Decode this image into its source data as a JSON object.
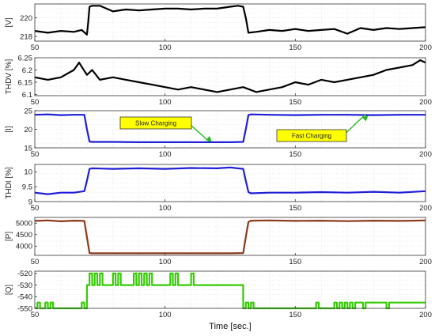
{
  "chart_data": [
    {
      "type": "line",
      "ylabel": "[V]",
      "xlim": [
        50,
        200
      ],
      "ylim": [
        217.5,
        221.5
      ],
      "yticks": [
        218,
        220
      ],
      "xticks": [
        50,
        100,
        150,
        200
      ],
      "grid": true,
      "series": [
        {
          "color": "#000000",
          "x": [
            50,
            55,
            60,
            65,
            68,
            70,
            70.5,
            71,
            72,
            75,
            80,
            85,
            90,
            95,
            100,
            105,
            110,
            115,
            120,
            125,
            128,
            130,
            131,
            132,
            135,
            140,
            145,
            150,
            155,
            160,
            165,
            170,
            175,
            180,
            185,
            190,
            195,
            200
          ],
          "y": [
            218.6,
            218.4,
            218.6,
            218.5,
            218.7,
            218.2,
            219.5,
            221.2,
            221.3,
            221.3,
            220.7,
            220.9,
            220.8,
            220.9,
            221.0,
            221.0,
            220.9,
            221.0,
            221.0,
            221.2,
            221.3,
            221.2,
            220.0,
            218.4,
            218.5,
            218.7,
            218.6,
            218.8,
            218.6,
            218.7,
            218.8,
            218.3,
            218.9,
            218.7,
            218.9,
            218.8,
            218.9,
            219.0
          ]
        }
      ]
    },
    {
      "type": "line",
      "ylabel": "THDV [%]",
      "xlim": [
        50,
        200
      ],
      "ylim": [
        6.095,
        6.25
      ],
      "yticks": [
        6.1,
        6.15,
        6.2,
        6.25
      ],
      "xticks": [
        50,
        100,
        150,
        200
      ],
      "grid": true,
      "series": [
        {
          "color": "#000000",
          "x": [
            50,
            55,
            60,
            65,
            67,
            70,
            72,
            75,
            80,
            85,
            90,
            95,
            100,
            105,
            110,
            115,
            120,
            125,
            130,
            135,
            140,
            145,
            150,
            155,
            160,
            165,
            170,
            175,
            180,
            185,
            190,
            195,
            198,
            200
          ],
          "y": [
            6.17,
            6.16,
            6.17,
            6.2,
            6.23,
            6.18,
            6.2,
            6.16,
            6.17,
            6.16,
            6.15,
            6.14,
            6.13,
            6.12,
            6.13,
            6.12,
            6.11,
            6.12,
            6.13,
            6.11,
            6.12,
            6.13,
            6.15,
            6.14,
            6.16,
            6.15,
            6.16,
            6.17,
            6.18,
            6.2,
            6.21,
            6.22,
            6.24,
            6.23
          ]
        }
      ]
    },
    {
      "type": "line",
      "ylabel": "[I]",
      "xlim": [
        50,
        200
      ],
      "ylim": [
        15,
        25
      ],
      "yticks": [
        15,
        20,
        25
      ],
      "xticks": [
        50,
        100,
        150,
        200
      ],
      "grid": true,
      "annotations": [
        {
          "text": "Slow Charging",
          "target": [
            118,
            16.6
          ]
        },
        {
          "text": "Fast Charging",
          "target": [
            178,
            23.7
          ]
        }
      ],
      "series": [
        {
          "color": "#1f1fd6",
          "x": [
            50,
            55,
            60,
            65,
            69,
            70,
            71,
            72,
            80,
            90,
            100,
            110,
            120,
            125,
            130,
            131,
            132,
            133,
            140,
            150,
            160,
            170,
            180,
            190,
            200
          ],
          "y": [
            23.9,
            24.0,
            23.8,
            23.9,
            23.9,
            20.0,
            16.7,
            16.6,
            16.6,
            16.5,
            16.5,
            16.5,
            16.5,
            16.5,
            16.6,
            20.0,
            23.8,
            24.0,
            23.9,
            23.8,
            23.9,
            23.9,
            23.8,
            23.9,
            23.9
          ]
        }
      ]
    },
    {
      "type": "line",
      "ylabel": "THDI [%]",
      "xlim": [
        50,
        200
      ],
      "ylim": [
        9.0,
        10.25
      ],
      "yticks": [
        9,
        9.5,
        10
      ],
      "xticks": [
        50,
        100,
        150,
        200
      ],
      "grid": true,
      "series": [
        {
          "color": "#1f1fd6",
          "x": [
            50,
            55,
            60,
            65,
            69,
            70,
            71,
            72,
            80,
            90,
            100,
            110,
            120,
            125,
            130,
            131,
            132,
            133,
            140,
            150,
            160,
            170,
            180,
            190,
            200
          ],
          "y": [
            9.3,
            9.25,
            9.3,
            9.3,
            9.35,
            9.7,
            10.1,
            10.12,
            10.1,
            10.12,
            10.1,
            10.13,
            10.12,
            10.15,
            10.1,
            9.7,
            9.32,
            9.28,
            9.3,
            9.3,
            9.32,
            9.3,
            9.33,
            9.3,
            9.35
          ]
        }
      ]
    },
    {
      "type": "line",
      "ylabel": "[P]",
      "xlim": [
        50,
        200
      ],
      "ylim": [
        3600,
        5250
      ],
      "yticks": [
        4000,
        4500,
        5000
      ],
      "xticks": [
        50,
        100,
        150,
        200
      ],
      "grid": true,
      "series": [
        {
          "color": "#8b3a1a",
          "x": [
            50,
            55,
            60,
            65,
            69,
            70,
            71,
            72,
            80,
            90,
            100,
            110,
            120,
            125,
            130,
            131,
            132,
            133,
            140,
            150,
            160,
            170,
            180,
            190,
            200
          ],
          "y": [
            5100,
            5120,
            5080,
            5110,
            5100,
            4400,
            3700,
            3690,
            3690,
            3690,
            3690,
            3690,
            3690,
            3690,
            3700,
            4400,
            5050,
            5110,
            5120,
            5100,
            5110,
            5090,
            5110,
            5100,
            5120
          ]
        }
      ]
    },
    {
      "type": "line",
      "ylabel": "[Q]",
      "xlim": [
        50,
        200
      ],
      "ylim": [
        -550,
        -518
      ],
      "yticks": [
        -550,
        -540,
        -530,
        -520
      ],
      "xticks": [
        50,
        100,
        150,
        200
      ],
      "xlabel": "Time [sec.]",
      "grid": true,
      "series": [
        {
          "color": "#33cc00",
          "x": [
            50,
            51,
            51,
            52,
            52,
            54,
            54,
            55,
            55,
            56,
            56,
            57,
            57,
            58,
            58,
            68,
            68,
            69,
            69,
            70,
            70,
            71,
            71,
            72,
            72,
            73,
            73,
            74,
            74,
            75,
            75,
            76,
            76,
            80,
            80,
            81,
            81,
            82,
            82,
            83,
            83,
            88,
            88,
            89,
            89,
            90,
            90,
            91,
            91,
            92,
            92,
            93,
            93,
            94,
            94,
            95,
            95,
            96,
            96,
            102,
            102,
            103,
            103,
            104,
            104,
            105,
            105,
            110,
            110,
            111,
            111,
            130,
            130,
            131,
            131,
            132,
            132,
            133,
            133,
            134,
            134,
            135,
            135,
            158,
            158,
            159,
            159,
            165,
            165,
            166,
            166,
            167,
            167,
            168,
            168,
            169,
            169,
            170,
            170,
            171,
            171,
            172,
            172,
            173,
            173,
            176,
            176,
            177,
            177,
            185,
            185,
            186,
            186,
            200
          ],
          "y": [
            -550,
            -550,
            -545,
            -545,
            -550,
            -550,
            -545,
            -545,
            -550,
            -550,
            -545,
            -545,
            -550,
            -550,
            -550,
            -550,
            -545,
            -545,
            -550,
            -550,
            -530,
            -530,
            -520,
            -520,
            -530,
            -530,
            -520,
            -520,
            -530,
            -530,
            -520,
            -520,
            -530,
            -530,
            -520,
            -520,
            -530,
            -530,
            -520,
            -520,
            -530,
            -530,
            -520,
            -520,
            -530,
            -530,
            -520,
            -520,
            -530,
            -530,
            -520,
            -520,
            -530,
            -530,
            -520,
            -520,
            -530,
            -530,
            -530,
            -530,
            -520,
            -520,
            -530,
            -530,
            -520,
            -520,
            -530,
            -530,
            -520,
            -520,
            -530,
            -530,
            -550,
            -550,
            -545,
            -545,
            -550,
            -550,
            -545,
            -545,
            -550,
            -550,
            -550,
            -550,
            -545,
            -545,
            -550,
            -550,
            -545,
            -545,
            -550,
            -550,
            -545,
            -545,
            -550,
            -550,
            -545,
            -545,
            -550,
            -550,
            -545,
            -545,
            -550,
            -550,
            -545,
            -545,
            -550,
            -550,
            -545,
            -545,
            -550,
            -550,
            -545,
            -545
          ]
        }
      ]
    }
  ]
}
